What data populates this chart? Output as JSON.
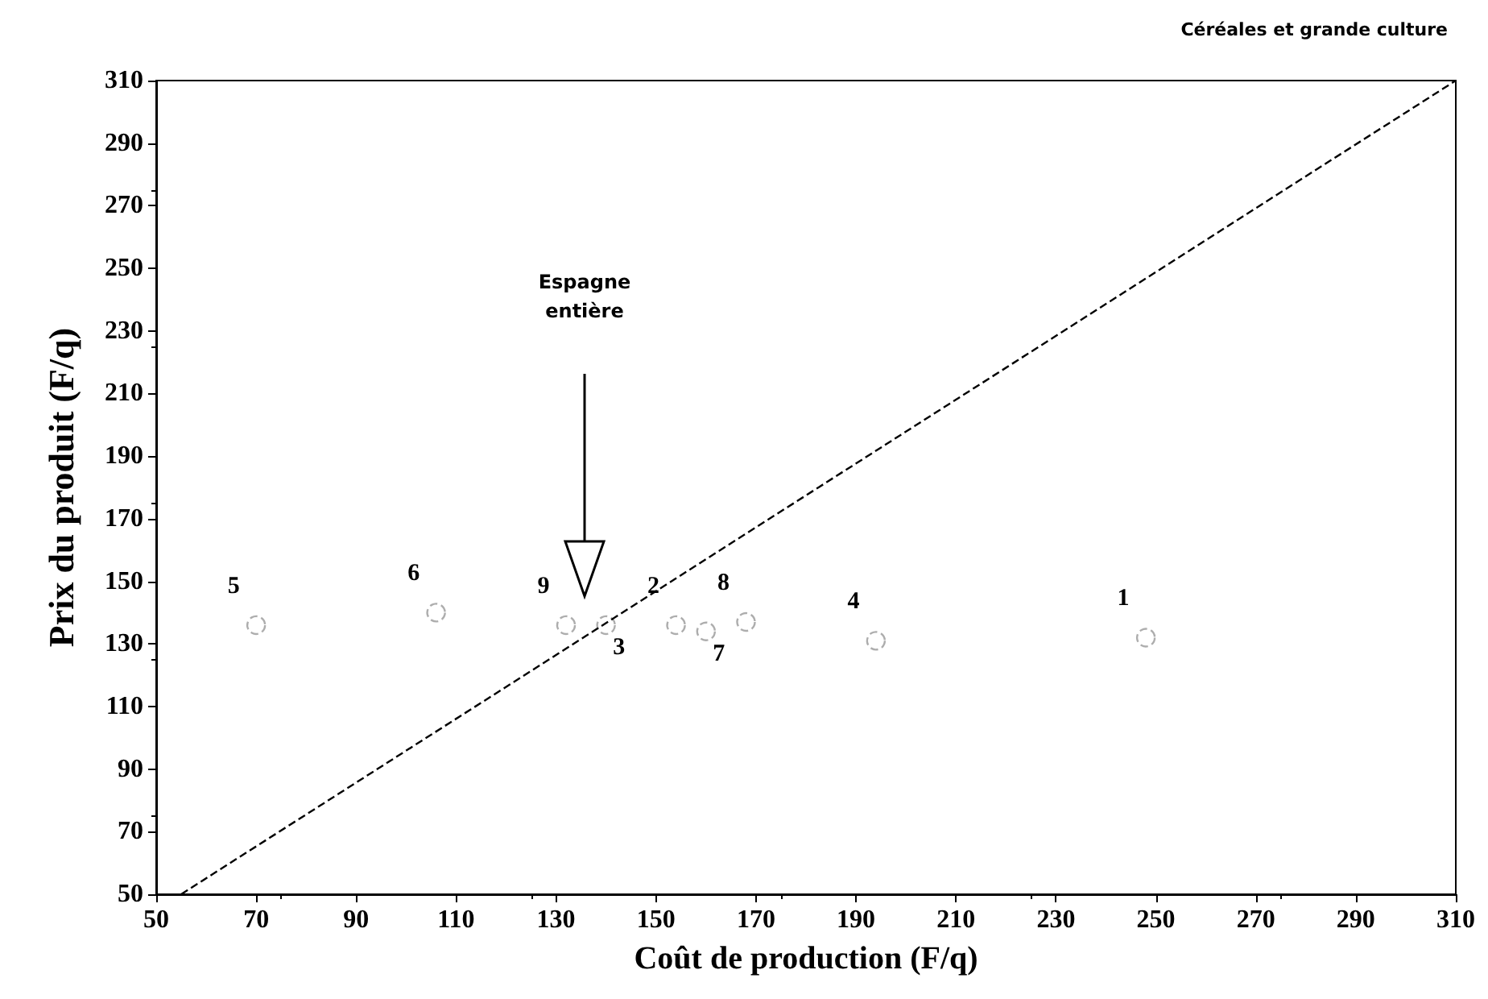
{
  "chart_data": {
    "type": "scatter",
    "title": "Céréales et grande culture",
    "xlabel": "Coût de production (F/q)",
    "ylabel": "Prix du produit (F/q)",
    "xlim": [
      50,
      310
    ],
    "xticks": [
      50,
      70,
      90,
      110,
      130,
      150,
      170,
      190,
      210,
      230,
      250,
      270,
      290,
      310
    ],
    "ylim": [
      50,
      310
    ],
    "yticks": [
      50,
      70,
      90,
      110,
      130,
      150,
      170,
      190,
      210,
      230,
      250,
      270,
      290,
      310
    ],
    "grid": false,
    "marker": "circle",
    "series": [
      {
        "color": "#999999",
        "x": [
          248,
          154,
          140,
          194,
          70,
          106,
          160,
          168,
          132
        ],
        "values": [
          132,
          136,
          136,
          131,
          136,
          140,
          134,
          137,
          136
        ]
      },
      {
        "type": "line",
        "color": "#000000",
        "line_style": "dashed",
        "marker": "none",
        "x": [
          55,
          310
        ],
        "values": [
          50,
          310
        ]
      }
    ],
    "annotations": [
      {
        "text": "1",
        "x": 248,
        "y": 132
      },
      {
        "text": "2",
        "x": 154,
        "y": 136
      },
      {
        "text": "3",
        "x": 140,
        "y": 136
      },
      {
        "text": "4",
        "x": 194,
        "y": 131
      },
      {
        "text": "5",
        "x": 70,
        "y": 136
      },
      {
        "text": "6",
        "x": 106,
        "y": 140
      },
      {
        "text": "7",
        "x": 160,
        "y": 134
      },
      {
        "text": "8",
        "x": 168,
        "y": 137
      },
      {
        "text": "9",
        "x": 132,
        "y": 136
      },
      "Espagne entière"
    ]
  }
}
